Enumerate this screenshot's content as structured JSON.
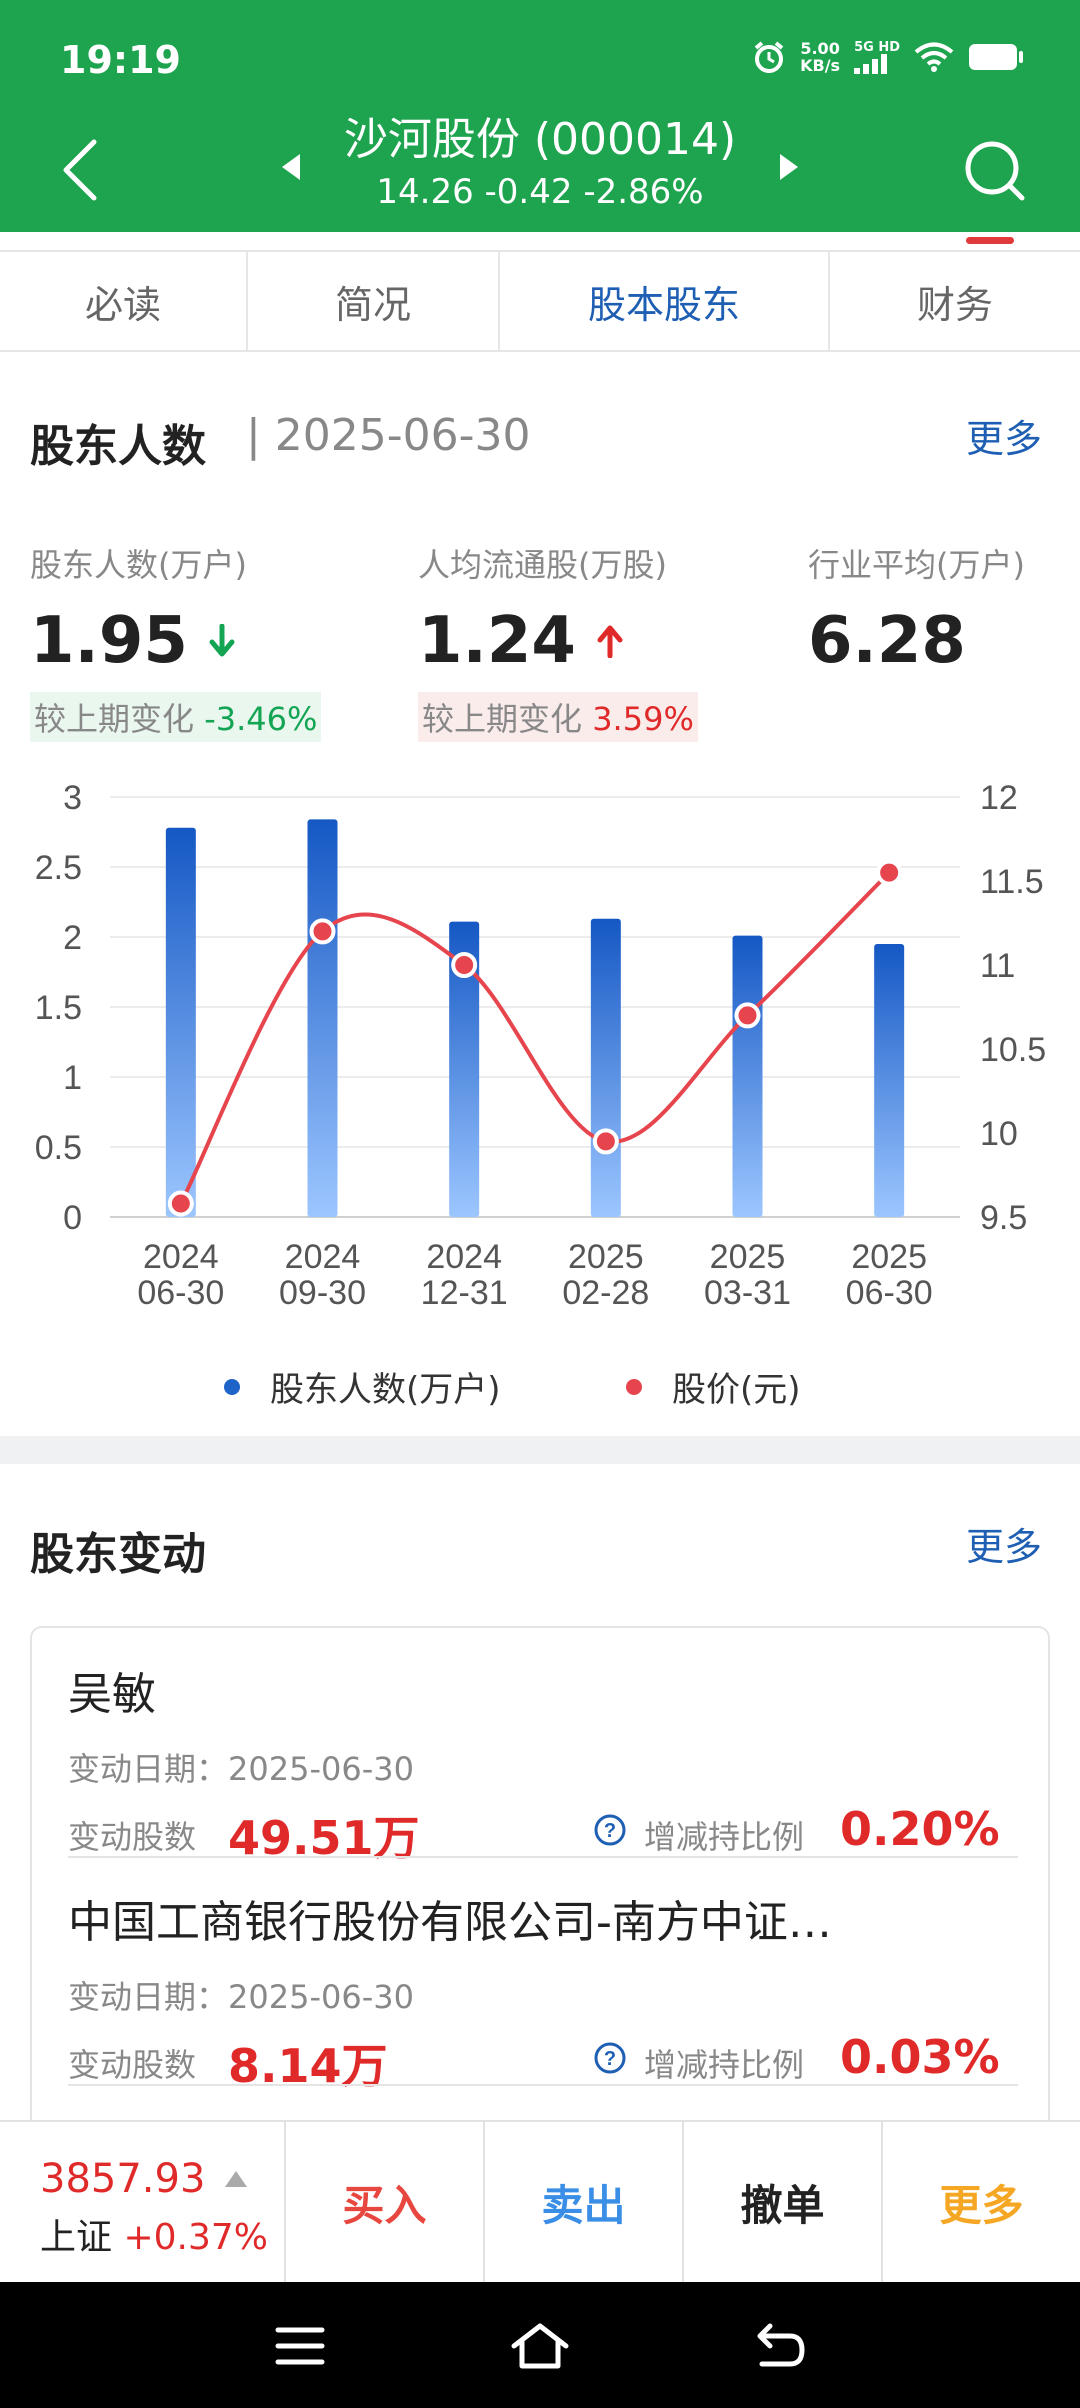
{
  "status_bar": {
    "time": "19:19",
    "net_speed_value": "5.00",
    "net_speed_unit": "KB/s",
    "signal_label": "5G HD"
  },
  "header": {
    "stock_name": "沙河股份 (000014)",
    "quote": "14.26  -0.42  -2.86%",
    "bg_color": "#1ea44f"
  },
  "tabs": [
    {
      "label": "必读",
      "active": false
    },
    {
      "label": "简况",
      "active": false
    },
    {
      "label": "股本股东",
      "active": true
    },
    {
      "label": "财务",
      "active": false
    }
  ],
  "holders": {
    "title": "股东人数",
    "date": "| 2025-06-30",
    "more": "更多",
    "stats": [
      {
        "label": "股东人数(万户)",
        "value": "1.95",
        "trend": "down",
        "change_label": "较上期变化",
        "change": "-3.46%"
      },
      {
        "label": "人均流通股(万股)",
        "value": "1.24",
        "trend": "up",
        "change_label": "较上期变化",
        "change": "3.59%"
      },
      {
        "label": "行业平均(万户)",
        "value": "6.28"
      }
    ]
  },
  "chart_data": {
    "type": "bar",
    "categories": [
      "2024\n06-30",
      "2024\n09-30",
      "2024\n12-31",
      "2025\n02-28",
      "2025\n03-31",
      "2025\n06-30"
    ],
    "x_tick_year": [
      "2024",
      "2024",
      "2024",
      "2025",
      "2025",
      "2025"
    ],
    "x_tick_date": [
      "06-30",
      "09-30",
      "12-31",
      "02-28",
      "03-31",
      "06-30"
    ],
    "series": [
      {
        "name": "股东人数(万户)",
        "type": "bar",
        "axis": "left",
        "values": [
          2.78,
          2.84,
          2.11,
          2.13,
          2.01,
          1.95
        ],
        "color": "#1e63c8"
      },
      {
        "name": "股价(元)",
        "type": "line",
        "axis": "right",
        "values": [
          9.58,
          11.2,
          11.0,
          9.95,
          10.7,
          11.55
        ],
        "color": "#e6454d"
      }
    ],
    "left_ticks": [
      "3",
      "2.5",
      "2",
      "1.5",
      "1",
      "0.5",
      "0"
    ],
    "right_ticks": [
      "12",
      "11.5",
      "11",
      "10.5",
      "10",
      "9.5"
    ],
    "ylim_left": [
      0,
      3
    ],
    "ylim_right": [
      9.5,
      12
    ],
    "grid": true,
    "legend_position": "bottom"
  },
  "legend": [
    {
      "label": "股东人数(万户)",
      "color": "#1e63c8"
    },
    {
      "label": "股价(元)",
      "color": "#e6454d"
    }
  ],
  "changes": {
    "title": "股东变动",
    "more": "更多",
    "entries": [
      {
        "name": "吴敏",
        "date": "变动日期：2025-06-30",
        "shares_label": "变动股数",
        "shares": "49.51万",
        "ratio_label": "增减持比例",
        "ratio": "0.20%"
      },
      {
        "name": "中国工商银行股份有限公司-南方中证…",
        "date": "变动日期：2025-06-30",
        "shares_label": "变动股数",
        "shares": "8.14万",
        "ratio_label": "增减持比例",
        "ratio": "0.03%"
      }
    ]
  },
  "toolbar": {
    "index_value": "3857.93",
    "index_name": "上证",
    "index_change": "+0.37%",
    "buy": "买入",
    "sell": "卖出",
    "cancel": "撤单",
    "more": "更多"
  }
}
